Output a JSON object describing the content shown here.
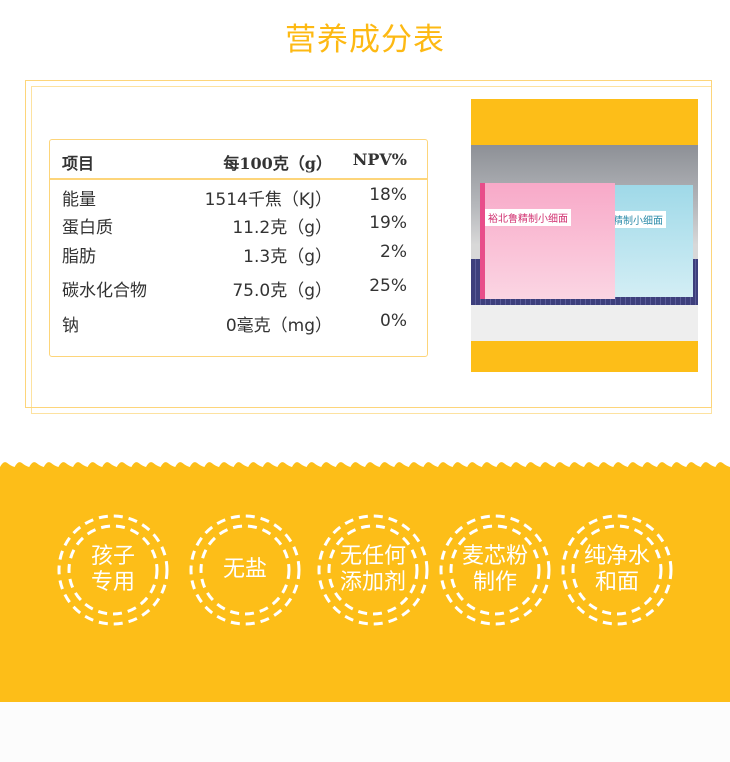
{
  "title": "营养成分表",
  "table": {
    "headers": [
      "项目",
      "每100克（g）",
      "NPV%"
    ],
    "rows": [
      [
        "能量",
        "1514千焦（KJ）",
        "18%"
      ],
      [
        "蛋白质",
        "11.2克（g）",
        "19%"
      ],
      [
        "脂肪",
        "1.3克（g）",
        "2%"
      ],
      [
        "碳水化合物",
        "75.0克（g）",
        "25%"
      ],
      [
        "钠",
        "0毫克（mg）",
        "0%"
      ]
    ]
  },
  "photo": {
    "brand": "裕北鲁精制小细面",
    "brand2": "精制小细面"
  },
  "badges": [
    [
      "孩子",
      "专用"
    ],
    [
      "无盐"
    ],
    [
      "无任何",
      "添加剂"
    ],
    [
      "麦芯粉",
      "制作"
    ],
    [
      "纯净水",
      "和面"
    ]
  ],
  "colors": {
    "accent": "#FDBE18",
    "border": "#FDD57A"
  }
}
